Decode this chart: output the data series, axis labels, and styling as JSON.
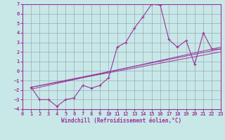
{
  "xlabel": "Windchill (Refroidissement éolien,°C)",
  "xlim": [
    0,
    23
  ],
  "ylim": [
    -4,
    7
  ],
  "xticks": [
    0,
    1,
    2,
    3,
    4,
    5,
    6,
    7,
    8,
    9,
    10,
    11,
    12,
    13,
    14,
    15,
    16,
    17,
    18,
    19,
    20,
    21,
    22,
    23
  ],
  "yticks": [
    -4,
    -3,
    -2,
    -1,
    0,
    1,
    2,
    3,
    4,
    5,
    6,
    7
  ],
  "bg_color": "#c8e8e8",
  "line_color": "#993399",
  "grid_color": "#99aab8",
  "main_x": [
    1,
    2,
    3,
    4,
    5,
    6,
    7,
    8,
    9,
    10,
    11,
    12,
    13,
    14,
    15,
    16,
    17,
    18,
    19,
    20,
    21,
    22,
    23
  ],
  "main_y": [
    -1.7,
    -3.0,
    -3.0,
    -3.7,
    -3.0,
    -2.8,
    -1.5,
    -1.8,
    -1.5,
    -0.7,
    2.5,
    3.0,
    4.5,
    5.7,
    7.0,
    6.9,
    3.3,
    2.5,
    3.2,
    0.7,
    4.0,
    2.3,
    2.3
  ],
  "trend_lines": [
    {
      "x": [
        1,
        23
      ],
      "y": [
        -1.7,
        2.3
      ]
    },
    {
      "x": [
        1,
        23
      ],
      "y": [
        -1.7,
        2.0
      ]
    },
    {
      "x": [
        1,
        23
      ],
      "y": [
        -1.9,
        2.5
      ]
    }
  ]
}
